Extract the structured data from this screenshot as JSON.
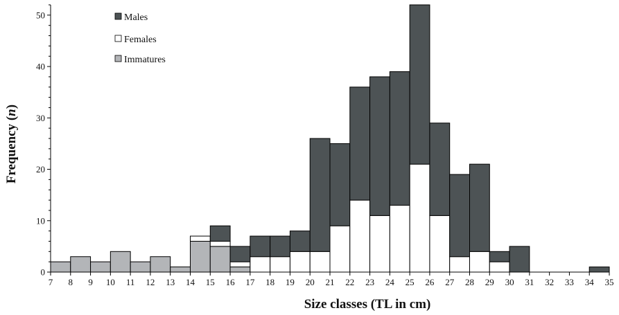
{
  "chart_data": {
    "type": "bar",
    "stacked": true,
    "title": "",
    "xlabel": "Size classes (TL in cm)",
    "ylabel_main": "Frequency (",
    "ylabel_italic": "n",
    "ylabel_end": ")",
    "xlim": [
      7,
      35
    ],
    "ylim": [
      0,
      52
    ],
    "x_ticks": [
      "7",
      "8",
      "9",
      "10",
      "11",
      "12",
      "13",
      "14",
      "15",
      "16",
      "17",
      "18",
      "19",
      "20",
      "21",
      "22",
      "23",
      "24",
      "25",
      "26",
      "27",
      "28",
      "29",
      "30",
      "31",
      "32",
      "33",
      "34",
      "35"
    ],
    "y_ticks": [
      "0",
      "10",
      "20",
      "30",
      "40",
      "50"
    ],
    "legend": [
      {
        "name": "Males",
        "color": "#4d5355"
      },
      {
        "name": "Females",
        "color": "#ffffff"
      },
      {
        "name": "Immatures",
        "color": "#b3b5b8"
      }
    ],
    "size_class_start": [
      7,
      8,
      9,
      10,
      11,
      12,
      13,
      14,
      15,
      16,
      17,
      18,
      19,
      20,
      21,
      22,
      23,
      24,
      25,
      26,
      27,
      28,
      29,
      30,
      31,
      32,
      33,
      34
    ],
    "series": [
      {
        "name": "Immatures",
        "color": "#b3b5b8",
        "values": [
          2,
          3,
          2,
          4,
          2,
          3,
          1,
          6,
          5,
          1,
          0,
          0,
          0,
          0,
          0,
          0,
          0,
          0,
          0,
          0,
          0,
          0,
          0,
          0,
          0,
          0,
          0,
          0
        ]
      },
      {
        "name": "Females",
        "color": "#ffffff",
        "values": [
          0,
          0,
          0,
          0,
          0,
          0,
          0,
          1,
          1,
          1,
          3,
          3,
          4,
          4,
          9,
          14,
          11,
          13,
          21,
          11,
          3,
          4,
          2,
          0,
          0,
          0,
          0,
          0
        ]
      },
      {
        "name": "Males",
        "color": "#4d5355",
        "values": [
          0,
          0,
          0,
          0,
          0,
          0,
          0,
          0,
          3,
          3,
          4,
          4,
          4,
          22,
          16,
          22,
          27,
          26,
          31,
          18,
          16,
          17,
          2,
          5,
          0,
          0,
          0,
          1
        ]
      }
    ]
  }
}
